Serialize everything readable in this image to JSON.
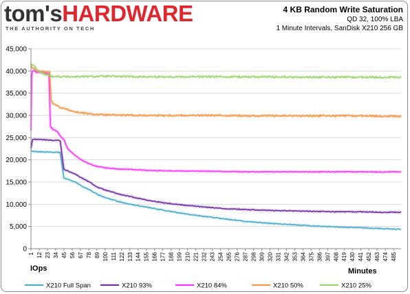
{
  "brand": {
    "logo_part1": "tom's",
    "logo_part2": "HARDWARE",
    "tagline": "THE AUTHORITY ON TECH"
  },
  "chart_data": {
    "type": "line",
    "title": "4 KB Random Write Saturation",
    "subtitle_1": "QD 32, 100% LBA",
    "subtitle_2": "1 Minute Intervals, SanDisk X210 256 GB",
    "xlabel": "Minutes",
    "ylabel": "IOps",
    "ylim": [
      0,
      45000
    ],
    "yticks": [
      0,
      5000,
      10000,
      15000,
      20000,
      25000,
      30000,
      35000,
      40000,
      45000
    ],
    "ytick_labels": [
      "0",
      "5,000",
      "10,000",
      "15,000",
      "20,000",
      "25,000",
      "30,000",
      "35,000",
      "40,000",
      "45,000"
    ],
    "xlim": [
      1,
      495
    ],
    "xtick_labels": [
      "1",
      "12",
      "23",
      "34",
      "45",
      "56",
      "67",
      "78",
      "89",
      "100",
      "111",
      "122",
      "133",
      "144",
      "155",
      "166",
      "177",
      "188",
      "199",
      "210",
      "221",
      "232",
      "243",
      "254",
      "265",
      "276",
      "287",
      "298",
      "309",
      "320",
      "331",
      "342",
      "353",
      "364",
      "375",
      "386",
      "397",
      "408",
      "419",
      "430",
      "441",
      "452",
      "463",
      "474",
      "485"
    ],
    "grid": true,
    "legend_position": "bottom",
    "series": [
      {
        "name": "X210 Full Span",
        "color": "#4bacc6",
        "x": [
          1,
          5,
          10,
          20,
          30,
          38,
          40,
          45,
          50,
          60,
          70,
          80,
          90,
          100,
          120,
          140,
          160,
          180,
          200,
          230,
          260,
          290,
          320,
          350,
          380,
          410,
          440,
          470,
          495
        ],
        "y": [
          22000,
          21900,
          21800,
          21800,
          21700,
          21700,
          21600,
          15900,
          15600,
          15000,
          14000,
          13200,
          12200,
          11500,
          10500,
          9800,
          9200,
          8600,
          8000,
          7300,
          6700,
          6100,
          5700,
          5400,
          5100,
          4900,
          4700,
          4500,
          4400
        ]
      },
      {
        "name": "X210 93%",
        "color": "#7030a0",
        "x": [
          1,
          3,
          10,
          20,
          30,
          38,
          40,
          45,
          50,
          60,
          70,
          80,
          90,
          100,
          120,
          140,
          160,
          180,
          200,
          230,
          260,
          290,
          320,
          350,
          380,
          410,
          440,
          470,
          495
        ],
        "y": [
          22500,
          24600,
          24600,
          24500,
          24400,
          24400,
          24300,
          17800,
          17500,
          16800,
          15800,
          14900,
          13800,
          13200,
          12200,
          11500,
          10800,
          10300,
          9900,
          9400,
          9000,
          8800,
          8600,
          8500,
          8400,
          8300,
          8300,
          8200,
          8200
        ]
      },
      {
        "name": "X210 84%",
        "color": "#ff33ff",
        "x": [
          1,
          2,
          3,
          5,
          10,
          20,
          25,
          27,
          30,
          35,
          40,
          45,
          50,
          60,
          70,
          80,
          90,
          100,
          110,
          120,
          140,
          160,
          200,
          250,
          300,
          350,
          400,
          450,
          495
        ],
        "y": [
          26500,
          39000,
          40100,
          40000,
          39700,
          39500,
          39300,
          27500,
          27000,
          26500,
          25500,
          24500,
          22500,
          21000,
          19800,
          19000,
          18500,
          18200,
          18000,
          17900,
          17800,
          17600,
          17500,
          17400,
          17300,
          17300,
          17300,
          17300,
          17300
        ]
      },
      {
        "name": "X210 50%",
        "color": "#f79646",
        "x": [
          1,
          2,
          5,
          10,
          20,
          26,
          28,
          30,
          40,
          60,
          80,
          100,
          150,
          200,
          250,
          300,
          350,
          400,
          450,
          495
        ],
        "y": [
          40500,
          41000,
          40500,
          40000,
          39800,
          39700,
          33500,
          32800,
          31800,
          30800,
          30300,
          30100,
          30000,
          30000,
          30000,
          29900,
          29900,
          29900,
          29900,
          29800
        ]
      },
      {
        "name": "X210 25%",
        "color": "#9bd36e",
        "x": [
          1,
          2,
          5,
          10,
          20,
          30,
          50,
          100,
          150,
          200,
          250,
          300,
          350,
          400,
          450,
          495
        ],
        "y": [
          41000,
          41600,
          41200,
          40000,
          39200,
          38800,
          38700,
          38800,
          38700,
          38700,
          38700,
          38700,
          38600,
          38600,
          38600,
          38600
        ]
      }
    ]
  }
}
